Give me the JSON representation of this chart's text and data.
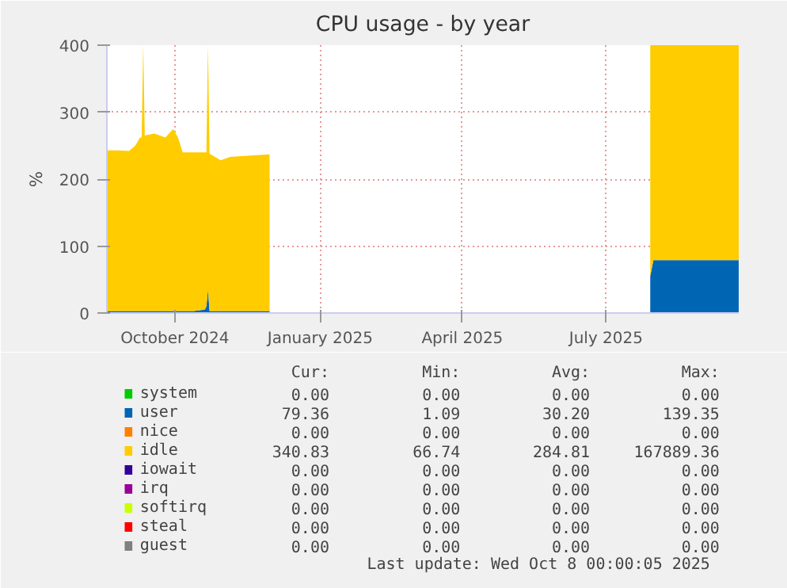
{
  "chart_data": {
    "type": "area",
    "stacked": true,
    "title": "CPU usage - by year",
    "ylabel": "%",
    "x": [
      "2024-09-03",
      "2024-09-10",
      "2024-09-17",
      "2024-09-21",
      "2024-09-24",
      "2024-09-25",
      "2024-09-26",
      "2024-09-27",
      "2024-10-03",
      "2024-10-10",
      "2024-10-15",
      "2024-10-18",
      "2024-10-21",
      "2024-10-28",
      "2024-11-04",
      "2024-11-05",
      "2024-11-06",
      "2024-11-07",
      "2024-11-14",
      "2024-11-20",
      "2024-12-01",
      "2024-12-15",
      "2024-12-16",
      "2025-08-12",
      "2025-08-13",
      "2025-08-15",
      "2025-10-08"
    ],
    "series": [
      {
        "name": "system",
        "color": "#00cc00",
        "values": [
          null,
          null,
          null,
          null,
          null,
          null,
          null,
          null,
          null,
          null,
          null,
          null,
          null,
          null,
          null,
          null,
          null,
          null,
          null,
          null,
          null,
          null,
          null,
          null,
          null,
          null,
          null
        ]
      },
      {
        "name": "user",
        "color": "#0066b3",
        "values": [
          3,
          3,
          3,
          3,
          3,
          3,
          3,
          3,
          3,
          3,
          3,
          3,
          3,
          3,
          5,
          10,
          35,
          3,
          3,
          3,
          3,
          3,
          null,
          null,
          55,
          79,
          79
        ]
      },
      {
        "name": "nice",
        "color": "#ff8000",
        "values": [
          null,
          null,
          null,
          null,
          null,
          null,
          null,
          null,
          null,
          null,
          null,
          null,
          null,
          null,
          null,
          null,
          null,
          null,
          null,
          null,
          null,
          null,
          null,
          null,
          null,
          null,
          null
        ]
      },
      {
        "name": "idle",
        "color": "#ffcc00",
        "values": [
          240,
          240,
          239,
          247,
          259,
          259,
          397,
          262,
          265,
          259,
          272,
          259,
          237,
          237,
          235,
          230,
          365,
          235,
          225,
          230,
          232,
          234,
          null,
          null,
          345,
          321,
          321
        ]
      },
      {
        "name": "iowait",
        "color": "#330099",
        "values": [
          null,
          null,
          null,
          null,
          null,
          null,
          null,
          null,
          null,
          null,
          null,
          null,
          null,
          null,
          null,
          null,
          null,
          null,
          null,
          null,
          null,
          null,
          null,
          null,
          null,
          null,
          null
        ]
      },
      {
        "name": "irq",
        "color": "#990099",
        "values": [
          null,
          null,
          null,
          null,
          null,
          null,
          null,
          null,
          null,
          null,
          null,
          null,
          null,
          null,
          null,
          null,
          null,
          null,
          null,
          null,
          null,
          null,
          null,
          null,
          null,
          null,
          null
        ]
      },
      {
        "name": "softirq",
        "color": "#ccff00",
        "values": [
          null,
          null,
          null,
          null,
          null,
          null,
          null,
          null,
          null,
          null,
          null,
          null,
          null,
          null,
          null,
          null,
          null,
          null,
          null,
          null,
          null,
          null,
          null,
          null,
          null,
          null,
          null
        ]
      },
      {
        "name": "steal",
        "color": "#ff0000",
        "values": [
          null,
          null,
          null,
          null,
          null,
          null,
          null,
          null,
          null,
          null,
          null,
          null,
          null,
          null,
          null,
          null,
          null,
          null,
          null,
          null,
          null,
          null,
          null,
          null,
          null,
          null,
          null
        ]
      },
      {
        "name": "guest",
        "color": "#808080",
        "values": [
          null,
          null,
          null,
          null,
          null,
          null,
          null,
          null,
          null,
          null,
          null,
          null,
          null,
          null,
          null,
          null,
          null,
          null,
          null,
          null,
          null,
          null,
          null,
          null,
          null,
          null,
          null
        ]
      }
    ],
    "xlim": [
      "2024-09-03",
      "2025-10-08"
    ],
    "xticks": [
      {
        "value": "2024-10-16",
        "label": "October 2024"
      },
      {
        "value": "2025-01-16",
        "label": "January 2025"
      },
      {
        "value": "2025-04-16",
        "label": "April 2025"
      },
      {
        "value": "2025-07-16",
        "label": "July 2025"
      }
    ],
    "ylim": [
      0,
      400
    ],
    "yticks": [
      0,
      100,
      200,
      300,
      400
    ],
    "grid": true,
    "legend": "bottom",
    "annotations": [
      "Cur:",
      "Min:",
      "Avg:",
      "Max:",
      "0.00",
      "0.00",
      "0.00",
      "0.00",
      "79.36",
      "1.09",
      "30.20",
      "139.35",
      "0.00",
      "0.00",
      "0.00",
      "0.00",
      "340.83",
      "66.74",
      "284.81",
      "167889.36",
      "0.00",
      "0.00",
      "0.00",
      "0.00",
      "0.00",
      "0.00",
      "0.00",
      "0.00",
      "0.00",
      "0.00",
      "0.00",
      "0.00",
      "0.00",
      "0.00",
      "0.00",
      "0.00",
      "0.00",
      "0.00",
      "0.00",
      "0.00",
      "Last update: Wed Oct  8 00:00:05 2025"
    ]
  }
}
